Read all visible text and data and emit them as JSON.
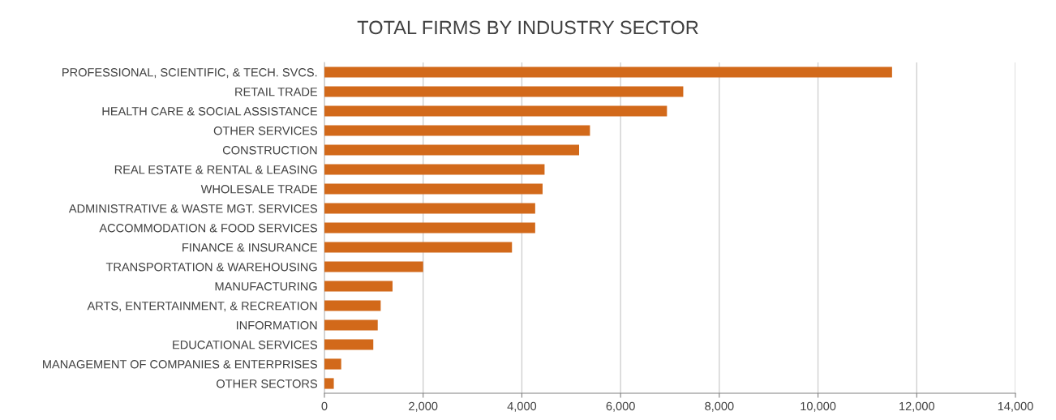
{
  "chart_data": {
    "type": "bar",
    "orientation": "horizontal",
    "title": "TOTAL FIRMS BY INDUSTRY SECTOR",
    "categories": [
      "PROFESSIONAL, SCIENTIFIC, & TECH. SVCS.",
      "RETAIL TRADE",
      "HEALTH CARE & SOCIAL ASSISTANCE",
      "OTHER SERVICES",
      "CONSTRUCTION",
      "REAL ESTATE & RENTAL & LEASING",
      "WHOLESALE TRADE",
      "ADMINISTRATIVE & WASTE MGT. SERVICES",
      "ACCOMMODATION & FOOD SERVICES",
      "FINANCE & INSURANCE",
      "TRANSPORTATION & WAREHOUSING",
      "MANUFACTURING",
      "ARTS, ENTERTAINMENT, & RECREATION",
      "INFORMATION",
      "EDUCATIONAL SERVICES",
      "MANAGEMENT OF COMPANIES & ENTERPRISES",
      "OTHER SECTORS"
    ],
    "values": [
      11500,
      7270,
      6940,
      5380,
      5160,
      4460,
      4420,
      4270,
      4270,
      3800,
      2000,
      1380,
      1140,
      1080,
      990,
      340,
      190
    ],
    "color": "#d2691a",
    "xlim": [
      0,
      14000
    ],
    "xticks": [
      {
        "value": 0,
        "label": "0"
      },
      {
        "value": 2000,
        "label": "2,000"
      },
      {
        "value": 4000,
        "label": "4,000"
      },
      {
        "value": 6000,
        "label": "6,000"
      },
      {
        "value": 8000,
        "label": "8,000"
      },
      {
        "value": 10000,
        "label": "10,000"
      },
      {
        "value": 12000,
        "label": "12,000"
      },
      {
        "value": 14000,
        "label": "14,000"
      }
    ],
    "grid": "x"
  }
}
